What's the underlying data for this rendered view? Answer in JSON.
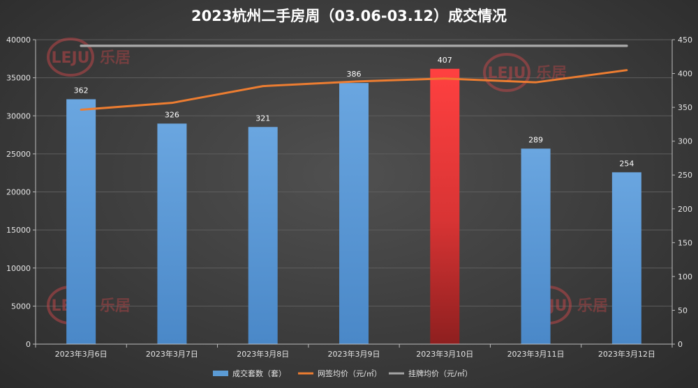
{
  "chart_data": {
    "type": "bar",
    "title": "2023杭州二手房周（03.06-03.12）成交情况",
    "categories": [
      "2023年3月6日",
      "2023年3月7日",
      "2023年3月8日",
      "2023年3月9日",
      "2023年3月10日",
      "2023年3月11日",
      "2023年3月12日"
    ],
    "y_left": {
      "ticks": [
        "0",
        "5000",
        "10000",
        "15000",
        "20000",
        "25000",
        "30000",
        "35000",
        "40000"
      ],
      "lim": [
        0,
        40000
      ]
    },
    "y_right": {
      "ticks": [
        "0",
        "50",
        "100",
        "150",
        "200",
        "250",
        "300",
        "350",
        "400",
        "450"
      ],
      "lim": [
        0,
        450
      ]
    },
    "series": [
      {
        "name": "成交套数（套）",
        "kind": "bar",
        "axis": "right",
        "values": [
          362,
          326,
          321,
          386,
          407,
          289,
          254
        ],
        "labels": [
          "362",
          "326",
          "321",
          "386",
          "407",
          "289",
          "254"
        ],
        "color": "#5b9bd5",
        "highlight_index": 4,
        "highlight_color": "#ff3b3b"
      },
      {
        "name": "网签均价（元/㎡）",
        "kind": "line",
        "axis": "left",
        "values": [
          30800,
          31700,
          33900,
          34500,
          34900,
          34400,
          36000
        ],
        "color": "#ed7d31"
      },
      {
        "name": "挂牌均价（元/㎡）",
        "kind": "line",
        "axis": "left",
        "values": [
          39200,
          39200,
          39200,
          39200,
          39200,
          39200,
          39200
        ],
        "color": "#a5a5a5"
      }
    ],
    "grid": true,
    "legend": "bottom"
  },
  "watermark": {
    "logo": "LEJU",
    "text": "乐居"
  }
}
